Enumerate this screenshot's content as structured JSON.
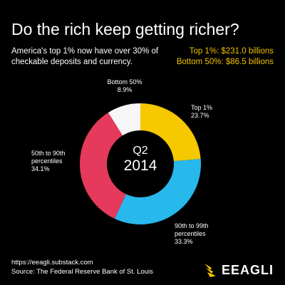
{
  "title": "Do the rich keep getting richer?",
  "subtitle": "America's top 1% now have over 30% of checkable deposits and currency.",
  "stats": {
    "top1": "Top 1%: $231.0 billions",
    "bottom50": "Bottom 50%: $86.5 billions"
  },
  "center": {
    "line1": "Q2",
    "line2": "2014"
  },
  "labels": {
    "top1_name": "Top 1%",
    "top1_value": "23.7%",
    "p90_99_name_1": "90th to 99th",
    "p90_99_name_2": "percentiles",
    "p90_99_value": "33.3%",
    "p50_90_name_1": "50th to 90th",
    "p50_90_name_2": "percentiles",
    "p50_90_value": "34.1%",
    "bottom50_name": "Bottom 50%",
    "bottom50_value": "8.9%"
  },
  "footer": {
    "url": "https://eeagli.substack.com",
    "source": "Source: The Federal Reserve Bank of St. Louis"
  },
  "brand": {
    "name": "EEAGLI",
    "logo_icon": "eagle-logo-icon"
  },
  "chart_data": {
    "type": "pie",
    "categories": [
      "Top 1%",
      "90th to 99th percentiles",
      "50th to 90th percentiles",
      "Bottom 50%"
    ],
    "values": [
      23.7,
      33.3,
      34.1,
      8.9
    ],
    "colors": [
      "#f5c800",
      "#27b8ec",
      "#e53a5b",
      "#f6f6f6"
    ],
    "donut": true,
    "start_angle_deg": 0,
    "direction": "clockwise"
  }
}
